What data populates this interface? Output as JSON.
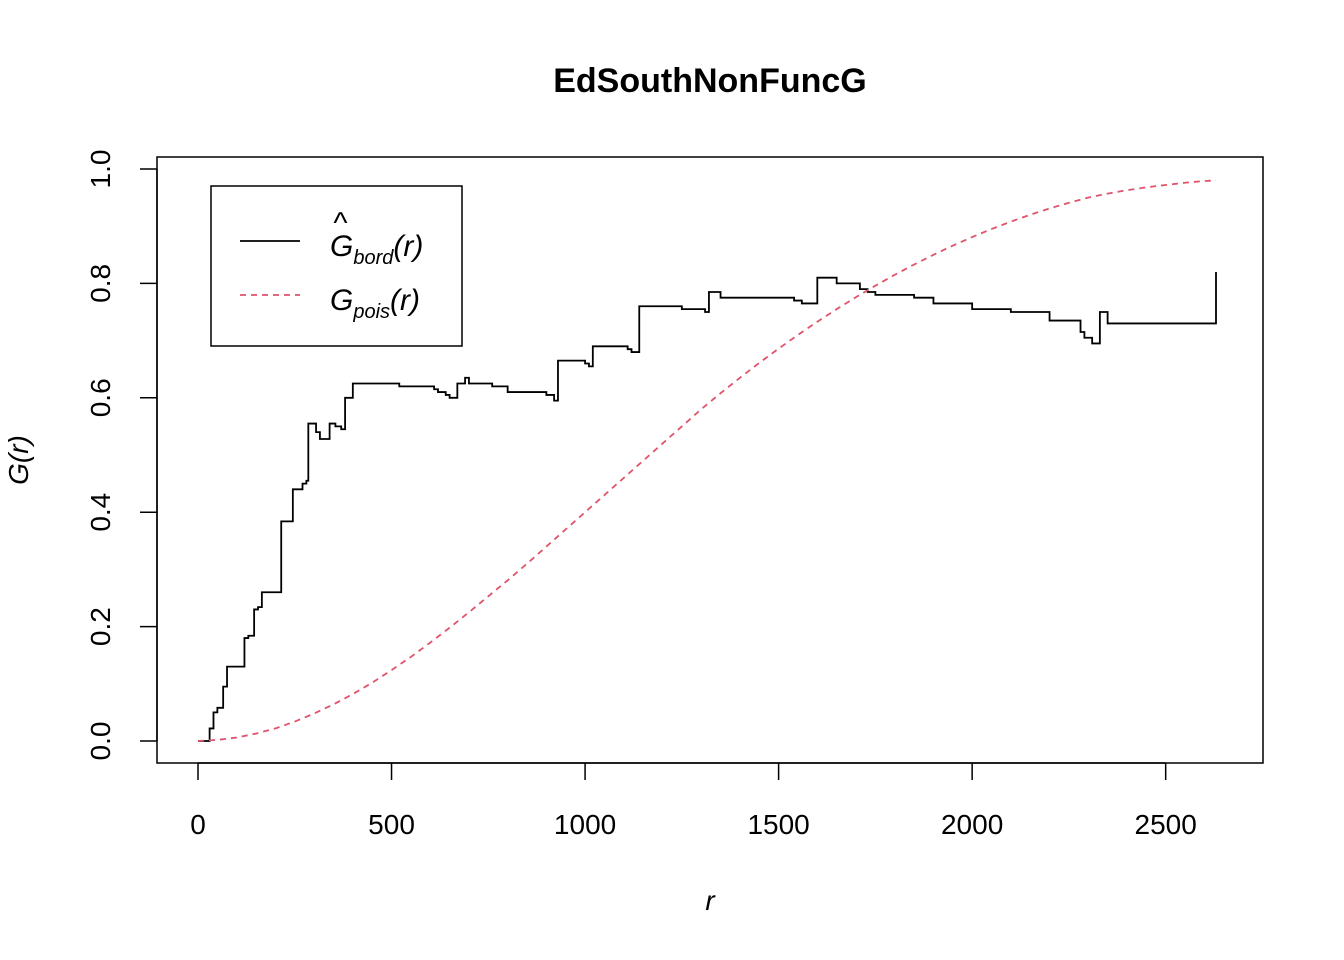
{
  "chart_data": {
    "type": "line",
    "title": "EdSouthNonFuncG",
    "xlabel": "r",
    "ylabel": "G(r)",
    "xlim": [
      0,
      2630
    ],
    "ylim": [
      0,
      1.0
    ],
    "x_ticks": [
      0,
      500,
      1000,
      1500,
      2000,
      2500
    ],
    "y_ticks": [
      0.0,
      0.2,
      0.4,
      0.6,
      0.8,
      1.0
    ],
    "x_tick_labels": [
      "0",
      "500",
      "1000",
      "1500",
      "2000",
      "2500"
    ],
    "y_tick_labels": [
      "0.0",
      "0.2",
      "0.4",
      "0.6",
      "0.8",
      "1.0"
    ],
    "grid": false,
    "legend_position": "top-left",
    "series": [
      {
        "name": "Ĝbord(r)",
        "legend_main": "G",
        "legend_sub": "bord",
        "legend_tail": "(r)",
        "hat": true,
        "color": "#000000",
        "style": "solid",
        "step": true,
        "x": [
          0,
          30,
          40,
          50,
          65,
          75,
          110,
          120,
          130,
          145,
          155,
          165,
          215,
          235,
          245,
          270,
          280,
          285,
          305,
          315,
          330,
          340,
          355,
          370,
          380,
          400,
          520,
          600,
          610,
          620,
          640,
          650,
          670,
          690,
          700,
          760,
          800,
          900,
          920,
          930,
          960,
          1000,
          1010,
          1020,
          1080,
          1100,
          1110,
          1120,
          1140,
          1250,
          1300,
          1310,
          1320,
          1330,
          1350,
          1390,
          1480,
          1540,
          1560,
          1600,
          1650,
          1700,
          1710,
          1730,
          1750,
          1800,
          1850,
          1900,
          1950,
          2000,
          2100,
          2200,
          2250,
          2280,
          2290,
          2310,
          2320,
          2330,
          2350,
          2500,
          2600,
          2630
        ],
        "y": [
          0.0,
          0.022,
          0.05,
          0.058,
          0.095,
          0.13,
          0.13,
          0.18,
          0.184,
          0.23,
          0.234,
          0.26,
          0.384,
          0.384,
          0.44,
          0.45,
          0.455,
          0.555,
          0.54,
          0.528,
          0.528,
          0.555,
          0.55,
          0.545,
          0.6,
          0.625,
          0.62,
          0.62,
          0.615,
          0.61,
          0.605,
          0.6,
          0.625,
          0.635,
          0.625,
          0.62,
          0.61,
          0.605,
          0.595,
          0.665,
          0.665,
          0.66,
          0.655,
          0.69,
          0.69,
          0.69,
          0.685,
          0.68,
          0.76,
          0.755,
          0.755,
          0.75,
          0.785,
          0.785,
          0.775,
          0.775,
          0.775,
          0.77,
          0.765,
          0.81,
          0.8,
          0.8,
          0.79,
          0.785,
          0.78,
          0.78,
          0.775,
          0.765,
          0.765,
          0.755,
          0.75,
          0.735,
          0.735,
          0.715,
          0.705,
          0.695,
          0.695,
          0.75,
          0.73,
          0.73,
          0.73,
          0.82
        ]
      },
      {
        "name": "Gpois(r)",
        "legend_main": "G",
        "legend_sub": "pois",
        "legend_tail": "(r)",
        "hat": false,
        "color": "#df536b",
        "style": "dashed",
        "step": false,
        "x": [
          0,
          50,
          100,
          150,
          200,
          250,
          300,
          350,
          400,
          450,
          500,
          550,
          600,
          650,
          700,
          750,
          800,
          850,
          900,
          950,
          1000,
          1050,
          1100,
          1150,
          1200,
          1250,
          1300,
          1350,
          1400,
          1450,
          1500,
          1550,
          1600,
          1650,
          1700,
          1750,
          1800,
          1850,
          1900,
          1950,
          2000,
          2050,
          2100,
          2150,
          2200,
          2250,
          2300,
          2350,
          2400,
          2450,
          2500,
          2550,
          2600,
          2630
        ],
        "y": [
          0.0,
          0.002,
          0.006,
          0.013,
          0.022,
          0.034,
          0.048,
          0.064,
          0.082,
          0.102,
          0.124,
          0.147,
          0.172,
          0.198,
          0.225,
          0.253,
          0.281,
          0.31,
          0.34,
          0.37,
          0.4,
          0.43,
          0.46,
          0.49,
          0.52,
          0.55,
          0.58,
          0.608,
          0.635,
          0.661,
          0.686,
          0.71,
          0.733,
          0.755,
          0.776,
          0.796,
          0.815,
          0.833,
          0.85,
          0.866,
          0.881,
          0.895,
          0.908,
          0.92,
          0.931,
          0.941,
          0.95,
          0.957,
          0.963,
          0.968,
          0.972,
          0.976,
          0.979,
          0.98
        ]
      }
    ]
  }
}
